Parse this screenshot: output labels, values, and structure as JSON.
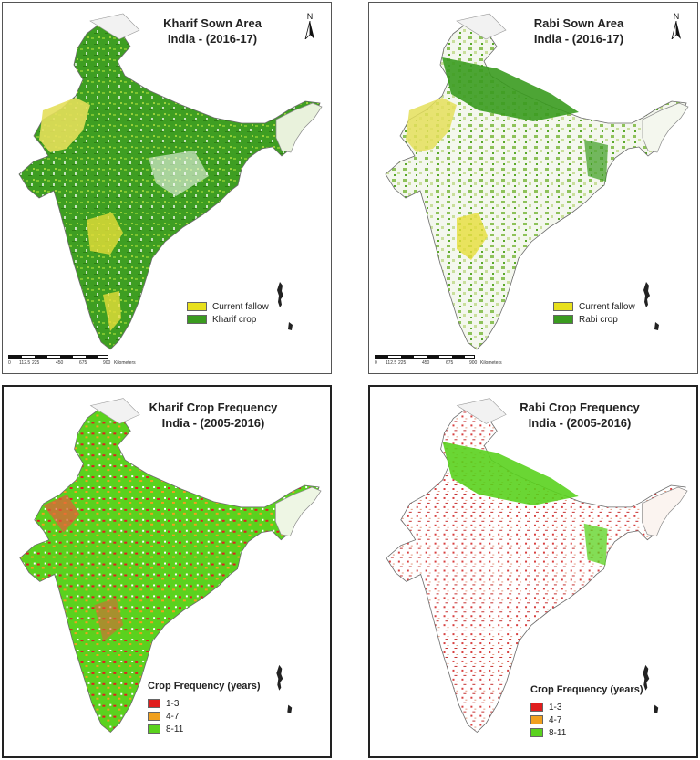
{
  "panels": [
    {
      "id": "kharif-sown",
      "title_line1": "Kharif Sown Area",
      "title_line2": "India - (2016-17)",
      "north_label": "N",
      "legend": [
        {
          "label": "Current fallow",
          "color": "#e8e01c"
        },
        {
          "label": "Kharif crop",
          "color": "#3a9b1f"
        }
      ],
      "scale": {
        "ticks": [
          "0",
          "112.5",
          "225",
          "450",
          "675",
          "900"
        ],
        "unit": "Kilometers"
      }
    },
    {
      "id": "rabi-sown",
      "title_line1": "Rabi Sown Area",
      "title_line2": "India - (2016-17)",
      "north_label": "N",
      "legend": [
        {
          "label": "Current fallow",
          "color": "#e8e01c"
        },
        {
          "label": "Rabi crop",
          "color": "#3a9b1f"
        }
      ],
      "scale": {
        "ticks": [
          "0",
          "112.5",
          "225",
          "450",
          "675",
          "900"
        ],
        "unit": "Kilometers"
      }
    },
    {
      "id": "kharif-frequency",
      "title_line1": "Kharif Crop Frequency",
      "title_line2": "India - (2005-2016)",
      "legend_title": "Crop Frequency (years)",
      "legend": [
        {
          "label": "1-3",
          "color": "#e01e1e"
        },
        {
          "label": "4-7",
          "color": "#f0a01e"
        },
        {
          "label": "8-11",
          "color": "#5ad21e"
        }
      ]
    },
    {
      "id": "rabi-frequency",
      "title_line1": "Rabi Crop Frequency",
      "title_line2": "India - (2005-2016)",
      "legend_title": "Crop Frequency (years)",
      "legend": [
        {
          "label": "1-3",
          "color": "#e01e1e"
        },
        {
          "label": "4-7",
          "color": "#f0a01e"
        },
        {
          "label": "8-11",
          "color": "#5ad21e"
        }
      ]
    }
  ]
}
